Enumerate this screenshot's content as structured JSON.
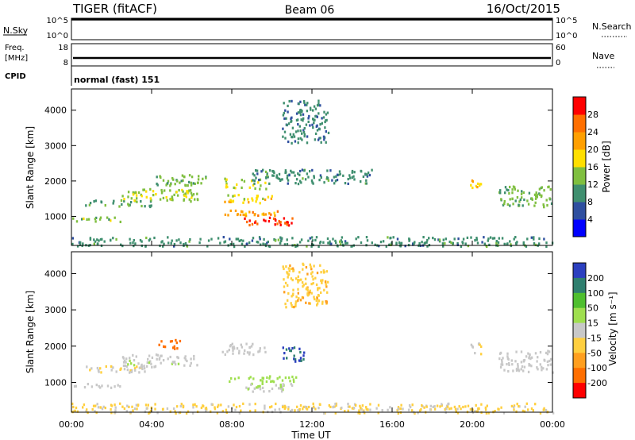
{
  "header": {
    "station": "TIGER (fitACF)",
    "beam": "Beam 06",
    "date": "16/Oct/2015"
  },
  "status_panels": {
    "nsky_label": "N.Sky",
    "nsky_ticks": [
      "10^5",
      "10^0"
    ],
    "nsearch_label": "N.Search",
    "nsearch_ticks": [
      "10^5",
      "10^0"
    ],
    "freq_label": "Freq.",
    "freq_unit": "[MHz]",
    "freq_ticks": [
      "18",
      "8"
    ],
    "nave_label": "Nave",
    "nave_ticks": [
      "60",
      "0"
    ],
    "cpid_label": "CPID",
    "cpid_value": "normal (fast) 151"
  },
  "axes": {
    "xlabel": "Time UT",
    "x_ticks": [
      "00:00",
      "04:00",
      "08:00",
      "12:00",
      "16:00",
      "20:00",
      "00:00"
    ],
    "ylabel": "Slant Range [km]",
    "y_ticks": [
      "1000",
      "2000",
      "3000",
      "4000"
    ]
  },
  "colorbars": {
    "power": {
      "label": "Power [dB]",
      "ticks": [
        "4",
        "8",
        "12",
        "16",
        "20",
        "24",
        "28"
      ],
      "colors": [
        "#0000ff",
        "#2f4f9f",
        "#3f8f6f",
        "#7fbf3f",
        "#ffdf00",
        "#ff9f00",
        "#ff6f00",
        "#ff0000"
      ]
    },
    "velocity": {
      "label": "Velocity [m s⁻¹]",
      "ticks": [
        "200",
        "100",
        "50",
        "15",
        "-15",
        "-50",
        "-100",
        "-200"
      ],
      "colors": [
        "#2b3fbf",
        "#2f7f6f",
        "#4fbf2f",
        "#9fdf4f",
        "#c8c8c8",
        "#ffcf3f",
        "#ff9f1f",
        "#ff6f00",
        "#ff0000"
      ]
    }
  },
  "chart_data": [
    {
      "type": "heatmap",
      "title": "Power",
      "xlabel": "Time UT",
      "ylabel": "Slant Range [km]",
      "xlim": [
        0,
        24
      ],
      "ylim": [
        180,
        4600
      ],
      "value_units": "dB",
      "features": [
        {
          "t0": 0.0,
          "t1": 24.0,
          "r0": 180,
          "r1": 450,
          "value": 10
        },
        {
          "t0": 0.0,
          "t1": 2.4,
          "r0": 880,
          "r1": 1000,
          "value": 14
        },
        {
          "t0": 0.5,
          "t1": 4.0,
          "r0": 1300,
          "r1": 1500,
          "value": 11
        },
        {
          "t0": 2.5,
          "t1": 6.3,
          "r0": 1450,
          "r1": 1800,
          "value": 15
        },
        {
          "t0": 4.2,
          "t1": 6.9,
          "r0": 1900,
          "r1": 2200,
          "value": 13
        },
        {
          "t0": 7.5,
          "t1": 9.8,
          "r0": 1800,
          "r1": 2100,
          "value": 16
        },
        {
          "t0": 7.5,
          "t1": 10.0,
          "r0": 1400,
          "r1": 1650,
          "value": 18
        },
        {
          "t0": 7.6,
          "t1": 11.2,
          "r0": 1050,
          "r1": 1200,
          "value": 22
        },
        {
          "t0": 8.3,
          "t1": 11.0,
          "r0": 780,
          "r1": 1000,
          "value": 28
        },
        {
          "t0": 9.0,
          "t1": 15.0,
          "r0": 1950,
          "r1": 2350,
          "value": 10
        },
        {
          "t0": 10.5,
          "t1": 12.8,
          "r0": 3100,
          "r1": 4300,
          "value": 9
        },
        {
          "t0": 19.8,
          "t1": 20.4,
          "r0": 1800,
          "r1": 2150,
          "value": 19
        },
        {
          "t0": 21.3,
          "t1": 24.0,
          "r0": 1300,
          "r1": 1900,
          "value": 13
        }
      ]
    },
    {
      "type": "heatmap",
      "title": "Velocity",
      "xlabel": "Time UT",
      "ylabel": "Slant Range [km]",
      "xlim": [
        0,
        24
      ],
      "ylim": [
        180,
        4600
      ],
      "value_units": "m s-1",
      "features": [
        {
          "t0": 0.0,
          "t1": 24.0,
          "r0": 180,
          "r1": 450,
          "value": -20
        },
        {
          "t0": 0.0,
          "t1": 2.4,
          "r0": 880,
          "r1": 1000,
          "value": 0
        },
        {
          "t0": 0.5,
          "t1": 4.0,
          "r0": 1300,
          "r1": 1500,
          "value": -10
        },
        {
          "t0": 2.5,
          "t1": 6.3,
          "r0": 1450,
          "r1": 1800,
          "value": 5
        },
        {
          "t0": 4.2,
          "t1": 5.5,
          "r0": 1950,
          "r1": 2200,
          "value": -150
        },
        {
          "t0": 7.5,
          "t1": 9.8,
          "r0": 1800,
          "r1": 2100,
          "value": 0
        },
        {
          "t0": 7.6,
          "t1": 11.2,
          "r0": 1050,
          "r1": 1200,
          "value": 40
        },
        {
          "t0": 8.3,
          "t1": 11.0,
          "r0": 780,
          "r1": 1000,
          "value": 10
        },
        {
          "t0": 10.5,
          "t1": 11.6,
          "r0": 1550,
          "r1": 2000,
          "value": 200
        },
        {
          "t0": 10.5,
          "t1": 12.8,
          "r0": 3100,
          "r1": 4300,
          "value": -40
        },
        {
          "t0": 19.8,
          "t1": 20.4,
          "r0": 1800,
          "r1": 2150,
          "value": -10
        },
        {
          "t0": 21.3,
          "t1": 24.0,
          "r0": 1300,
          "r1": 1900,
          "value": 0
        }
      ]
    }
  ]
}
